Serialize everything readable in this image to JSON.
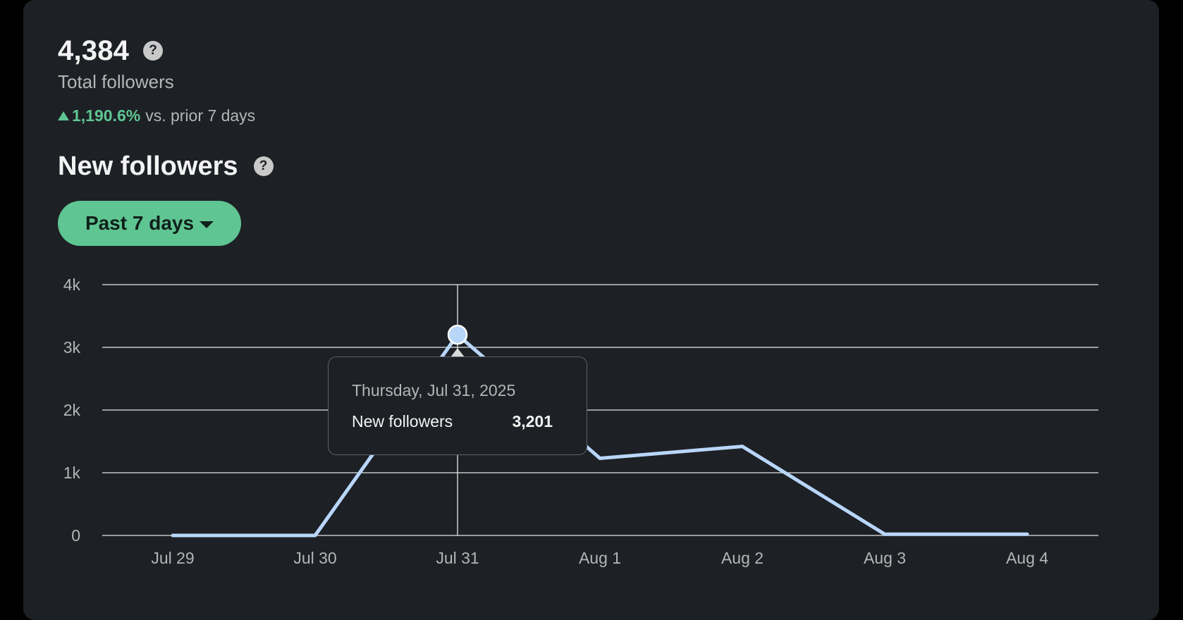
{
  "summary": {
    "total_value": "4,384",
    "total_label": "Total followers",
    "change_value": "1,190.6%",
    "change_suffix": "vs. prior 7 days"
  },
  "new_followers": {
    "title": "New followers",
    "range_label": "Past 7 days"
  },
  "tooltip": {
    "date": "Thursday, Jul 31, 2025",
    "label": "New followers",
    "value": "3,201"
  },
  "colors": {
    "accent_green": "#5fc592",
    "line_blue": "#b8d6f9",
    "card_bg": "#1d2025"
  },
  "chart_data": {
    "type": "line",
    "categories": [
      "Jul 29",
      "Jul 30",
      "Jul 31",
      "Aug 1",
      "Aug 2",
      "Aug 3",
      "Aug 4"
    ],
    "series": [
      {
        "values": [
          0,
          0,
          3201,
          1230,
          1420,
          20,
          20
        ]
      }
    ],
    "y_ticks": [
      "0",
      "1k",
      "2k",
      "3k",
      "4k"
    ],
    "ylim": [
      0,
      4000
    ],
    "grid": true,
    "highlighted_index": 2
  }
}
